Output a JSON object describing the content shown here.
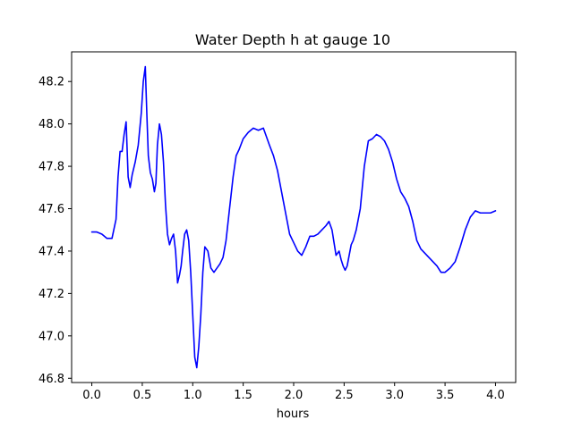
{
  "chart_data": {
    "type": "line",
    "title": "Water Depth h at gauge 10",
    "xlabel": "hours",
    "ylabel": "",
    "xlim": [
      -0.2,
      4.2
    ],
    "ylim": [
      46.78,
      48.34
    ],
    "xticks": [
      0.0,
      0.5,
      1.0,
      1.5,
      2.0,
      2.5,
      3.0,
      3.5,
      4.0
    ],
    "xtick_labels": [
      "0.0",
      "0.5",
      "1.0",
      "1.5",
      "2.0",
      "2.5",
      "3.0",
      "3.5",
      "4.0"
    ],
    "yticks": [
      46.8,
      47.0,
      47.2,
      47.4,
      47.6,
      47.8,
      48.0,
      48.2
    ],
    "ytick_labels": [
      "46.8",
      "47.0",
      "47.2",
      "47.4",
      "47.6",
      "47.8",
      "48.0",
      "48.2"
    ],
    "grid": false,
    "series": [
      {
        "color": "#0000ff",
        "x": [
          0.0,
          0.05,
          0.1,
          0.15,
          0.2,
          0.24,
          0.26,
          0.28,
          0.3,
          0.32,
          0.34,
          0.36,
          0.38,
          0.4,
          0.43,
          0.46,
          0.49,
          0.51,
          0.53,
          0.545,
          0.56,
          0.58,
          0.6,
          0.62,
          0.635,
          0.65,
          0.67,
          0.69,
          0.71,
          0.73,
          0.75,
          0.77,
          0.79,
          0.81,
          0.83,
          0.85,
          0.87,
          0.885,
          0.9,
          0.92,
          0.94,
          0.96,
          0.98,
          1.0,
          1.02,
          1.04,
          1.06,
          1.08,
          1.1,
          1.12,
          1.15,
          1.18,
          1.21,
          1.24,
          1.27,
          1.3,
          1.33,
          1.36,
          1.4,
          1.43,
          1.46,
          1.5,
          1.55,
          1.6,
          1.65,
          1.7,
          1.73,
          1.76,
          1.8,
          1.84,
          1.88,
          1.92,
          1.96,
          2.0,
          2.04,
          2.08,
          2.12,
          2.16,
          2.2,
          2.24,
          2.28,
          2.32,
          2.35,
          2.38,
          2.42,
          2.45,
          2.47,
          2.49,
          2.51,
          2.53,
          2.55,
          2.57,
          2.59,
          2.62,
          2.64,
          2.66,
          2.68,
          2.7,
          2.74,
          2.78,
          2.82,
          2.86,
          2.9,
          2.94,
          2.98,
          3.02,
          3.06,
          3.1,
          3.14,
          3.18,
          3.22,
          3.26,
          3.3,
          3.34,
          3.38,
          3.42,
          3.46,
          3.5,
          3.55,
          3.6,
          3.65,
          3.7,
          3.75,
          3.8,
          3.85,
          3.9,
          3.95,
          4.0
        ],
        "y": [
          47.49,
          47.49,
          47.48,
          47.46,
          47.46,
          47.55,
          47.75,
          47.87,
          47.87,
          47.95,
          48.01,
          47.75,
          47.7,
          47.76,
          47.82,
          47.9,
          48.05,
          48.2,
          48.27,
          48.05,
          47.85,
          47.77,
          47.74,
          47.68,
          47.72,
          47.9,
          48.0,
          47.95,
          47.82,
          47.62,
          47.48,
          47.43,
          47.46,
          47.48,
          47.4,
          47.25,
          47.29,
          47.33,
          47.4,
          47.48,
          47.5,
          47.45,
          47.3,
          47.1,
          46.9,
          46.85,
          46.95,
          47.1,
          47.3,
          47.42,
          47.4,
          47.32,
          47.3,
          47.32,
          47.34,
          47.37,
          47.45,
          47.58,
          47.75,
          47.85,
          47.88,
          47.93,
          47.96,
          47.98,
          47.97,
          47.98,
          47.94,
          47.9,
          47.85,
          47.78,
          47.68,
          47.58,
          47.48,
          47.44,
          47.4,
          47.38,
          47.42,
          47.47,
          47.47,
          47.48,
          47.5,
          47.52,
          47.54,
          47.5,
          47.38,
          47.4,
          47.36,
          47.33,
          47.31,
          47.33,
          47.38,
          47.43,
          47.45,
          47.5,
          47.55,
          47.6,
          47.7,
          47.8,
          47.92,
          47.93,
          47.95,
          47.94,
          47.92,
          47.88,
          47.82,
          47.74,
          47.68,
          47.65,
          47.61,
          47.54,
          47.45,
          47.41,
          47.39,
          47.37,
          47.35,
          47.33,
          47.3,
          47.3,
          47.32,
          47.35,
          47.42,
          47.5,
          47.56,
          47.59,
          47.58,
          47.58,
          47.58,
          47.59
        ]
      }
    ]
  }
}
